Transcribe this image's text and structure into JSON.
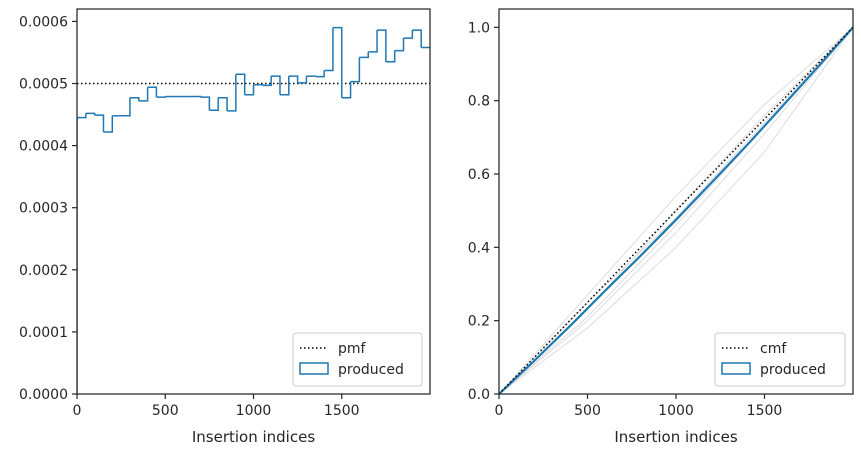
{
  "chart_data": [
    {
      "type": "step",
      "xlabel": "Insertion indices",
      "ylabel": "",
      "xlim": [
        0,
        2000
      ],
      "ylim": [
        0,
        0.00062
      ],
      "x_ticks": [
        0,
        500,
        1000,
        1500
      ],
      "x_tick_labels": [
        "0",
        "500",
        "1000",
        "1500"
      ],
      "y_ticks": [
        0,
        0.0001,
        0.0002,
        0.0003,
        0.0004,
        0.0005,
        0.0006
      ],
      "y_tick_labels": [
        "0.0000",
        "0.0001",
        "0.0002",
        "0.0003",
        "0.0004",
        "0.0005",
        "0.0006"
      ],
      "reference": {
        "name": "pmf",
        "value": 0.0005,
        "style": "dotted"
      },
      "histogram": {
        "name": "produced",
        "bin_width": 50,
        "values": [
          0.000445,
          0.000452,
          0.000449,
          0.000422,
          0.000448,
          0.000448,
          0.000477,
          0.000472,
          0.000494,
          0.000478,
          0.000479,
          0.000479,
          0.000479,
          0.000479,
          0.000478,
          0.000457,
          0.000477,
          0.000456,
          0.000515,
          0.000482,
          0.000498,
          0.000497,
          0.000512,
          0.000482,
          0.000512,
          0.000501,
          0.000512,
          0.000511,
          0.000521,
          0.00059,
          0.000477,
          0.000503,
          0.000542,
          0.000551,
          0.000586,
          0.000535,
          0.000553,
          0.000573,
          0.000586,
          0.000558
        ]
      },
      "legend": {
        "position": "lower-right",
        "entries": [
          "pmf",
          "produced"
        ]
      },
      "colors": {
        "series": "#1f77b4",
        "reference": "#000000"
      }
    },
    {
      "type": "step",
      "xlabel": "Insertion indices",
      "ylabel": "",
      "xlim": [
        0,
        2000
      ],
      "ylim": [
        0,
        1.05
      ],
      "x_ticks": [
        0,
        500,
        1000,
        1500
      ],
      "x_tick_labels": [
        "0",
        "500",
        "1000",
        "1500"
      ],
      "y_ticks": [
        0,
        0.2,
        0.4,
        0.6,
        0.8,
        1.0
      ],
      "y_tick_labels": [
        "0.0",
        "0.2",
        "0.4",
        "0.6",
        "0.8",
        "1.0"
      ],
      "reference": {
        "name": "cmf",
        "points": [
          [
            0,
            0
          ],
          [
            2000,
            1
          ]
        ],
        "style": "dotted"
      },
      "cumulative": {
        "name": "produced",
        "x": [
          0,
          200,
          400,
          600,
          800,
          1000,
          1200,
          1400,
          1600,
          1800,
          2000
        ],
        "y": [
          0,
          0.091,
          0.185,
          0.282,
          0.377,
          0.475,
          0.576,
          0.678,
          0.784,
          0.891,
          1.0
        ]
      },
      "background_curves": [
        {
          "x": [
            0,
            500,
            1000,
            1500,
            2000
          ],
          "y": [
            0,
            0.27,
            0.54,
            0.79,
            1.0
          ]
        },
        {
          "x": [
            0,
            500,
            1000,
            1500,
            2000
          ],
          "y": [
            0,
            0.2,
            0.44,
            0.71,
            1.0
          ]
        },
        {
          "x": [
            0,
            500,
            1000,
            1500,
            2000
          ],
          "y": [
            0,
            0.23,
            0.5,
            0.76,
            1.0
          ]
        },
        {
          "x": [
            0,
            500,
            1000,
            1500,
            2000
          ],
          "y": [
            0,
            0.18,
            0.4,
            0.66,
            1.0
          ]
        },
        {
          "x": [
            0,
            500,
            1000,
            1500,
            2000
          ],
          "y": [
            0,
            0.25,
            0.48,
            0.74,
            1.0
          ]
        },
        {
          "x": [
            0,
            500,
            1000,
            1500,
            2000
          ],
          "y": [
            0,
            0.21,
            0.46,
            0.73,
            1.0
          ]
        }
      ],
      "legend": {
        "position": "lower-right",
        "entries": [
          "cmf",
          "produced"
        ]
      },
      "colors": {
        "series": "#1f77b4",
        "reference": "#000000",
        "background": "#d9d9d9"
      }
    }
  ]
}
